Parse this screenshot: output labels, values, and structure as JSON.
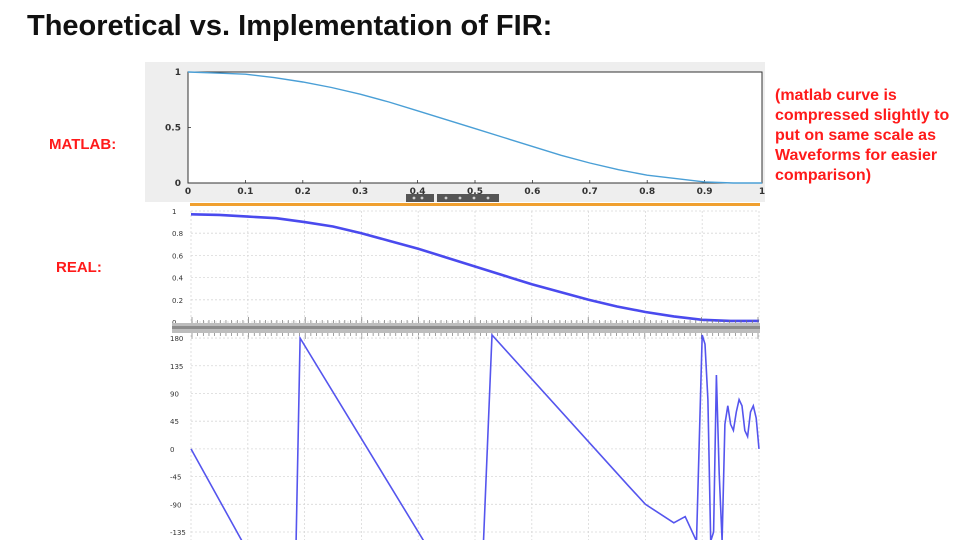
{
  "slide": {
    "title": "Theoretical vs. Implementation of FIR:",
    "matlab_label": "MATLAB:",
    "real_label": "REAL:",
    "note": "(matlab curve is compressed slightly to put on same scale as Waveforms for easier comparison)"
  },
  "colors": {
    "matlab_line": "#4a9fd6",
    "real_line": "#4a4aee",
    "label_red": "#ff1a1a",
    "orange_bar": "#f0a030"
  },
  "chart_data": [
    {
      "type": "line",
      "name": "matlab-magnitude",
      "xlim": [
        0,
        1
      ],
      "ylim": [
        0,
        1
      ],
      "x_ticks": [
        "0",
        "0.1",
        "0.2",
        "0.3",
        "0.4",
        "0.5",
        "0.6",
        "0.7",
        "0.8",
        "0.9",
        "1"
      ],
      "y_ticks": [
        "0",
        "0.5",
        "1"
      ],
      "x": [
        0,
        0.05,
        0.1,
        0.15,
        0.2,
        0.25,
        0.3,
        0.35,
        0.4,
        0.45,
        0.5,
        0.55,
        0.6,
        0.65,
        0.7,
        0.75,
        0.8,
        0.85,
        0.9,
        0.95,
        1.0
      ],
      "y": [
        1.0,
        0.99,
        0.98,
        0.95,
        0.91,
        0.86,
        0.8,
        0.73,
        0.65,
        0.57,
        0.49,
        0.41,
        0.33,
        0.25,
        0.18,
        0.12,
        0.07,
        0.04,
        0.01,
        0.0,
        0.0
      ]
    },
    {
      "type": "line",
      "name": "real-magnitude",
      "xlim": [
        0,
        1
      ],
      "ylim": [
        0,
        1
      ],
      "y_ticks": [
        "0",
        "0.2",
        "0.4",
        "0.6",
        "0.8",
        "1"
      ],
      "x": [
        0,
        0.05,
        0.1,
        0.15,
        0.2,
        0.25,
        0.3,
        0.35,
        0.4,
        0.45,
        0.5,
        0.55,
        0.6,
        0.65,
        0.7,
        0.75,
        0.8,
        0.85,
        0.9,
        0.95,
        1.0
      ],
      "y": [
        0.97,
        0.965,
        0.95,
        0.935,
        0.9,
        0.86,
        0.8,
        0.73,
        0.66,
        0.58,
        0.5,
        0.42,
        0.34,
        0.27,
        0.2,
        0.14,
        0.09,
        0.05,
        0.02,
        0.01,
        0.01
      ]
    },
    {
      "type": "line",
      "name": "real-phase",
      "xlim": [
        0,
        1
      ],
      "ylim": [
        -148,
        185
      ],
      "y_ticks": [
        "180",
        "135",
        "90",
        "45",
        "0",
        "-45",
        "-90",
        "-135"
      ],
      "x": [
        0,
        0.09,
        0.185,
        0.192,
        0.41,
        0.515,
        0.53,
        0.77,
        0.8,
        0.85,
        0.87,
        0.89,
        0.9,
        0.905,
        0.91,
        0.915,
        0.92,
        0.925,
        0.93,
        0.935,
        0.94,
        0.945,
        0.95,
        0.955,
        0.96,
        0.965,
        0.97,
        0.975,
        0.98,
        0.985,
        0.99,
        0.995,
        1.0
      ],
      "y": [
        0,
        -150,
        -150,
        180,
        -150,
        -150,
        185,
        -60,
        -90,
        -120,
        -110,
        -150,
        185,
        170,
        80,
        -150,
        -135,
        120,
        -40,
        -150,
        40,
        70,
        40,
        30,
        60,
        80,
        70,
        30,
        20,
        60,
        70,
        50,
        0
      ]
    }
  ]
}
